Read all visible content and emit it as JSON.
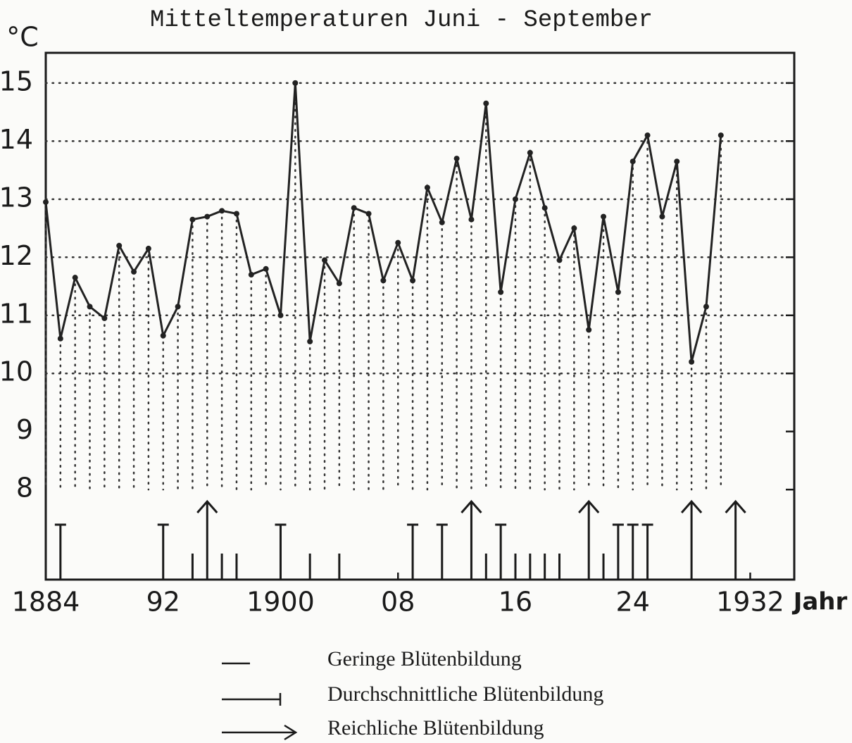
{
  "chart_data": {
    "type": "line",
    "title": "Mitteltemperaturen Juni - September",
    "y_label": "°C",
    "x_label": "Jahr",
    "x": [
      1884,
      1885,
      1886,
      1887,
      1888,
      1889,
      1890,
      1891,
      1892,
      1893,
      1894,
      1895,
      1896,
      1897,
      1898,
      1899,
      1900,
      1901,
      1902,
      1903,
      1904,
      1905,
      1906,
      1907,
      1908,
      1909,
      1910,
      1911,
      1912,
      1913,
      1914,
      1915,
      1916,
      1917,
      1918,
      1919,
      1920,
      1921,
      1922,
      1923,
      1924,
      1925,
      1926,
      1927,
      1928,
      1929,
      1930
    ],
    "series": [
      {
        "name": "Mitteltemperatur",
        "color": "#222222",
        "values": [
          12.95,
          10.6,
          11.65,
          11.15,
          10.95,
          12.2,
          11.75,
          12.15,
          10.65,
          11.15,
          12.65,
          12.7,
          12.8,
          12.75,
          11.7,
          11.8,
          11.0,
          15.0,
          10.55,
          11.95,
          11.55,
          12.85,
          12.75,
          11.6,
          12.25,
          11.6,
          13.2,
          12.6,
          13.7,
          12.65,
          14.65,
          11.4,
          13.0,
          13.8,
          12.85,
          11.95,
          12.5,
          10.75,
          12.7,
          11.4,
          13.65,
          14.1,
          12.7,
          13.65,
          10.2,
          11.15,
          14.1
        ]
      }
    ],
    "xlim": [
      1884,
      1935
    ],
    "ylim": [
      6.45,
      15.52
    ],
    "xticks": [
      1884,
      {
        "value": 1892,
        "label": "92"
      },
      1900,
      {
        "value": 1908,
        "label": "08"
      },
      {
        "value": 1916,
        "label": "16"
      },
      {
        "value": 1924,
        "label": "24"
      },
      1932
    ],
    "yticks": [
      8,
      9,
      10,
      11,
      12,
      13,
      14,
      15
    ],
    "grid": true,
    "legend": [
      "Geringe Blütenbildung",
      "Durchschnittliche Blütenbildung",
      "Reichliche Blütenbildung"
    ],
    "bloom": {
      "years": [
        1885,
        1892,
        1894,
        1895,
        1896,
        1897,
        1900,
        1902,
        1904,
        1909,
        1911,
        1913,
        1914,
        1915,
        1916,
        1917,
        1918,
        1919,
        1921,
        1922,
        1923,
        1924,
        1925,
        1928,
        1931
      ],
      "kinds": [
        1,
        1,
        0,
        2,
        0,
        0,
        1,
        0,
        0,
        1,
        1,
        2,
        0,
        1,
        0,
        0,
        0,
        0,
        2,
        0,
        1,
        1,
        1,
        2,
        2
      ]
    }
  }
}
